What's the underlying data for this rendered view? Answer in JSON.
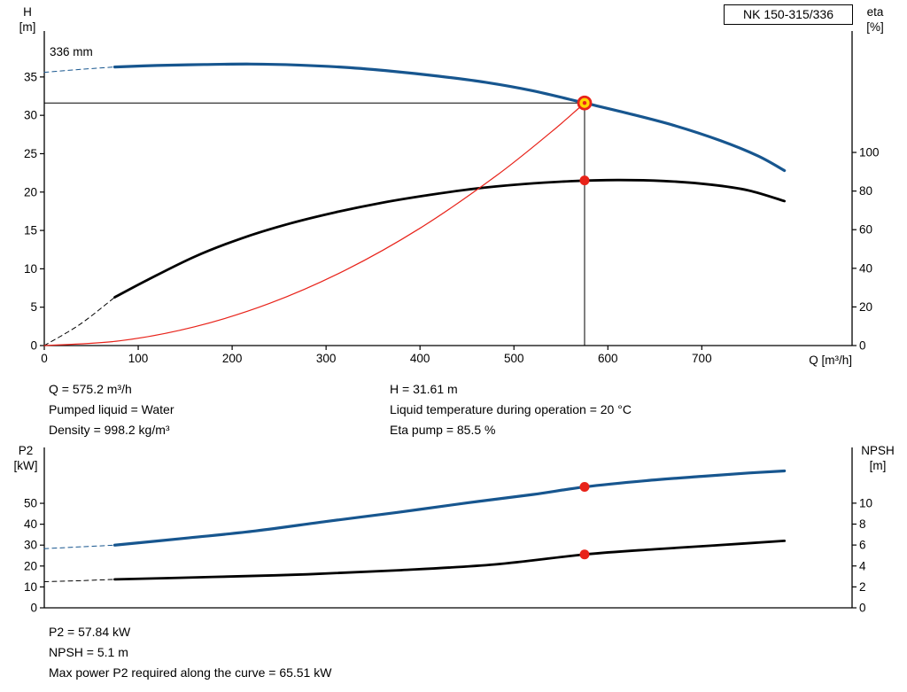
{
  "window": {
    "background": "#ffffff"
  },
  "colors": {
    "blue": "#17568F",
    "black": "#000000",
    "red": "#E8231A",
    "duty_fill": "#FFD500",
    "axis": "#000000"
  },
  "pump_model_box": {
    "label": "NK 150-315/336"
  },
  "impeller_label": "336 mm",
  "axis_labels": {
    "h_symbol": "H",
    "h_unit": "[m]",
    "eta_symbol": "eta",
    "eta_unit": "[%]",
    "q_label": "Q [m³/h]",
    "p2_symbol": "P2",
    "p2_unit": "[kW]",
    "npsh_symbol": "NPSH",
    "npsh_unit": "[m]"
  },
  "operating_point_info": {
    "col1": [
      "Q = 575.2 m³/h",
      "Pumped liquid = Water",
      "Density = 998.2 kg/m³"
    ],
    "col2": [
      "H = 31.61 m",
      "Liquid temperature during operation = 20 °C",
      "Eta pump = 85.5 %"
    ]
  },
  "power_info": [
    "P2 = 57.84 kW",
    "NPSH = 5.1 m",
    "Max power P2 required along the curve = 65.51 kW"
  ],
  "chart_data": [
    {
      "type": "line",
      "title": "NK 150-315/336",
      "grid": false,
      "legend": "none",
      "x_axis": {
        "label": "Q [m³/h]",
        "min": 0,
        "max": 860,
        "ticks": [
          0,
          100,
          200,
          300,
          400,
          500,
          600,
          700
        ],
        "show_tick_labels": true
      },
      "y_left": {
        "label": "H [m]",
        "min": 0,
        "max": 38.1,
        "ticks": [
          0,
          5,
          10,
          15,
          20,
          25,
          30,
          35
        ]
      },
      "y_right": {
        "label": "eta [%]",
        "min": 0,
        "max": 151.4,
        "ticks": [
          0,
          20,
          40,
          60,
          80,
          100
        ]
      },
      "series": [
        {
          "name": "head-curve-extrapolation",
          "axis": "left",
          "color": "blue",
          "width": 1,
          "dash": true,
          "points": [
            [
              0,
              35.6
            ],
            [
              40,
              36.0
            ],
            [
              75,
              36.3
            ]
          ]
        },
        {
          "name": "head-curve",
          "axis": "left",
          "color": "blue",
          "width": 3.2,
          "points": [
            [
              75,
              36.3
            ],
            [
              120,
              36.5
            ],
            [
              170,
              36.62
            ],
            [
              220,
              36.68
            ],
            [
              270,
              36.55
            ],
            [
              320,
              36.25
            ],
            [
              370,
              35.75
            ],
            [
              420,
              35.1
            ],
            [
              470,
              34.3
            ],
            [
              520,
              33.2
            ],
            [
              575.2,
              31.61
            ],
            [
              620,
              30.3
            ],
            [
              670,
              28.7
            ],
            [
              720,
              26.7
            ],
            [
              760,
              24.7
            ],
            [
              788,
              22.8
            ]
          ]
        },
        {
          "name": "efficiency-curve-extrapolation",
          "axis": "right",
          "color": "black",
          "width": 1,
          "dash": true,
          "points": [
            [
              0,
              0
            ],
            [
              38,
              11
            ],
            [
              75,
              25
            ]
          ]
        },
        {
          "name": "efficiency-curve",
          "axis": "right",
          "color": "black",
          "width": 2.8,
          "points": [
            [
              75,
              25
            ],
            [
              110,
              34
            ],
            [
              160,
              46
            ],
            [
              210,
              55.5
            ],
            [
              260,
              63
            ],
            [
              310,
              69
            ],
            [
              360,
              74
            ],
            [
              410,
              78
            ],
            [
              460,
              81.3
            ],
            [
              510,
              83.6
            ],
            [
              560,
              85.1
            ],
            [
              610,
              85.7
            ],
            [
              660,
              85.2
            ],
            [
              710,
              83.3
            ],
            [
              750,
              80.3
            ],
            [
              788,
              74.8
            ]
          ]
        },
        {
          "name": "system-curve",
          "axis": "left",
          "color": "red",
          "width": 1.2,
          "points": [
            [
              0,
              0
            ],
            [
              80,
              0.61
            ],
            [
              160,
              2.45
            ],
            [
              240,
              5.5
            ],
            [
              320,
              9.79
            ],
            [
              400,
              15.29
            ],
            [
              480,
              22.02
            ],
            [
              540,
              27.86
            ],
            [
              575.2,
              31.61
            ]
          ]
        }
      ],
      "markers": [
        {
          "name": "duty-point-marker",
          "axis": "left",
          "style": "duty",
          "q": 575.2,
          "value": 31.61
        },
        {
          "name": "efficiency-point-marker",
          "axis": "right",
          "style": "dot",
          "q": 575.2,
          "value": 85.5
        }
      ],
      "reference_lines": {
        "q": 575.2,
        "h": 31.61
      },
      "duty_point": {
        "q_m3h": 575.2,
        "h_m": 31.61,
        "eta_percent": 85.5,
        "impeller_mm": 336
      }
    },
    {
      "type": "line",
      "title": "P2 / NPSH",
      "grid": false,
      "legend": "none",
      "x_axis": {
        "label": "",
        "min": 0,
        "max": 860,
        "ticks": [],
        "show_tick_labels": false
      },
      "y_left": {
        "label": "P2 [kW]",
        "min": 0,
        "max": 74.6,
        "ticks": [
          0,
          10,
          20,
          30,
          40,
          50
        ]
      },
      "y_right": {
        "label": "NPSH [m]",
        "min": 0,
        "max": 14.9,
        "ticks": [
          0,
          2,
          4,
          6,
          8,
          10
        ]
      },
      "series": [
        {
          "name": "p2-curve-extrapolation",
          "axis": "left",
          "color": "blue",
          "width": 1,
          "dash": true,
          "points": [
            [
              0,
              28.3
            ],
            [
              40,
              29.2
            ],
            [
              75,
              30
            ]
          ]
        },
        {
          "name": "p2-curve",
          "axis": "left",
          "color": "blue",
          "width": 3.2,
          "points": [
            [
              75,
              30
            ],
            [
              150,
              33.3
            ],
            [
              225,
              36.8
            ],
            [
              300,
              41.3
            ],
            [
              375,
              45.6
            ],
            [
              450,
              50.2
            ],
            [
              520,
              54.2
            ],
            [
              575.2,
              57.84
            ],
            [
              640,
              60.8
            ],
            [
              700,
              62.9
            ],
            [
              750,
              64.5
            ],
            [
              788,
              65.5
            ]
          ]
        },
        {
          "name": "npsh-curve-extrapolation",
          "axis": "right",
          "color": "black",
          "width": 1,
          "dash": true,
          "points": [
            [
              0,
              2.5
            ],
            [
              40,
              2.6
            ],
            [
              75,
              2.72
            ]
          ]
        },
        {
          "name": "npsh-curve",
          "axis": "right",
          "color": "black",
          "width": 2.8,
          "points": [
            [
              75,
              2.72
            ],
            [
              180,
              2.95
            ],
            [
              280,
              3.2
            ],
            [
              380,
              3.6
            ],
            [
              480,
              4.15
            ],
            [
              575.2,
              5.1
            ],
            [
              650,
              5.6
            ],
            [
              720,
              6.0
            ],
            [
              788,
              6.4
            ]
          ]
        }
      ],
      "markers": [
        {
          "name": "p2-point-marker",
          "axis": "left",
          "style": "dot",
          "q": 575.2,
          "value": 57.84
        },
        {
          "name": "npsh-point-marker",
          "axis": "right",
          "style": "dot",
          "q": 575.2,
          "value": 5.1
        }
      ],
      "duty_point": {
        "p2_kw": 57.84,
        "npsh_m": 5.1,
        "max_p2_kw": 65.51
      }
    }
  ]
}
